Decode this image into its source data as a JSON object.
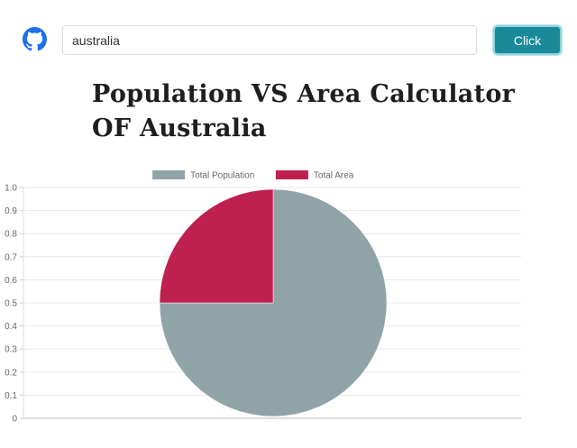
{
  "header": {
    "search_value": "australia",
    "click_label": "Click",
    "github_icon": "github-icon"
  },
  "main": {
    "title": "Population VS Area Calculator OF Australia"
  },
  "chart_data": {
    "type": "pie",
    "categories": [
      "Total Population",
      "Total Area"
    ],
    "values": [
      0.75,
      0.25
    ],
    "colors": [
      "#90a4a8",
      "#be2050"
    ],
    "legend_position": "top",
    "y_ticks": [
      "1.0",
      "0.9",
      "0.8",
      "0.7",
      "0.6",
      "0.5",
      "0.4",
      "0.3",
      "0.2",
      "0.1",
      "0"
    ],
    "ylim": [
      0,
      1
    ],
    "grid": true
  }
}
